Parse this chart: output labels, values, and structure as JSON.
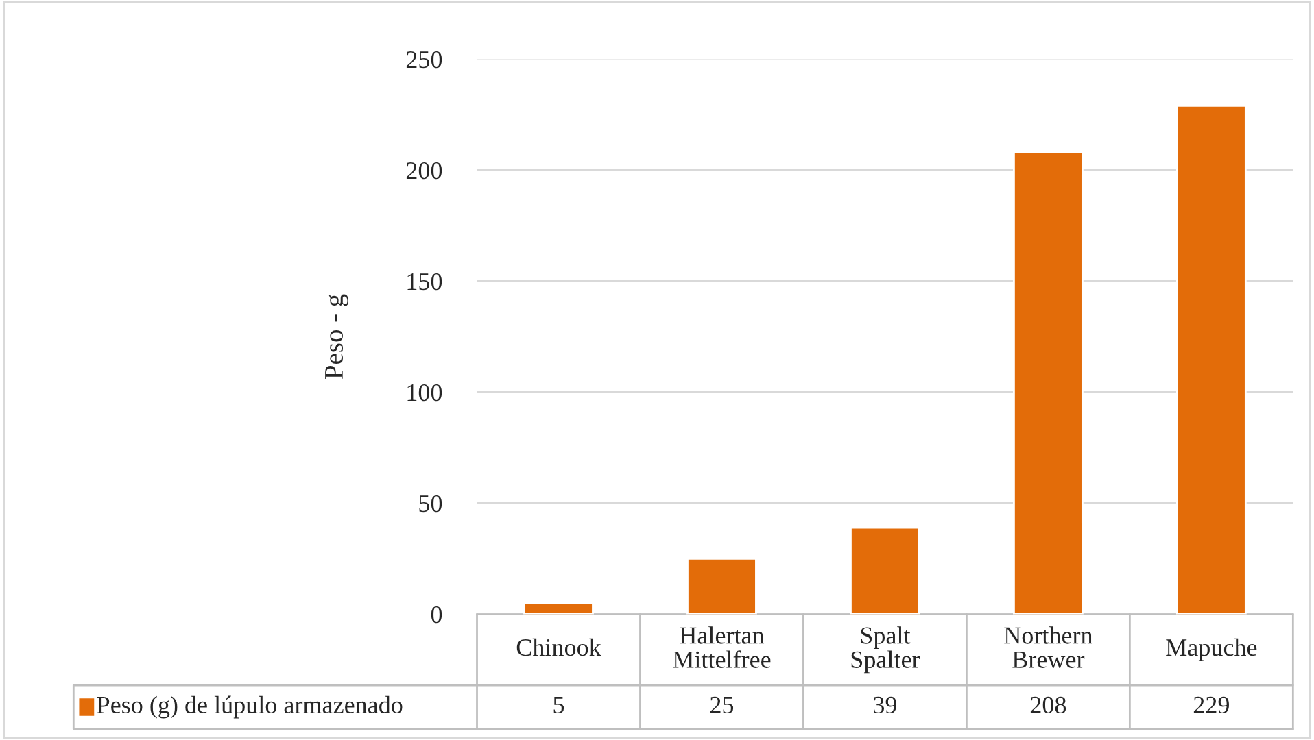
{
  "chart_data": {
    "type": "bar",
    "ylabel": "Peso - g",
    "categories": [
      "Chinook",
      "Halertan Mittelfree",
      "Spalt Spalter",
      "Northern Brewer",
      "Mapuche"
    ],
    "series": [
      {
        "name": "Peso (g) de lúpulo armazenado",
        "color": "#e36c09",
        "values": [
          5,
          25,
          39,
          208,
          229
        ]
      }
    ],
    "ylim": [
      0,
      250
    ],
    "yticks": [
      0,
      50,
      100,
      150,
      200,
      250
    ],
    "grid": "y",
    "data_labels": true,
    "legend": "bottom"
  }
}
